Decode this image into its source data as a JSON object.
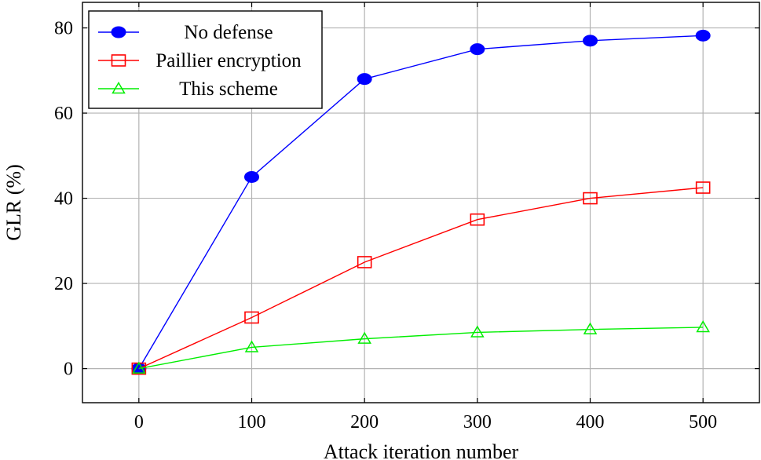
{
  "chart_data": {
    "type": "line",
    "title": "",
    "xlabel": "Attack iteration number",
    "ylabel": "GLR (%)",
    "x": [
      0,
      100,
      200,
      300,
      400,
      500
    ],
    "xlim": [
      -50,
      550
    ],
    "ylim": [
      -8,
      86
    ],
    "xticks": [
      0,
      100,
      200,
      300,
      400,
      500
    ],
    "yticks": [
      0,
      20,
      40,
      60,
      80
    ],
    "grid": true,
    "legend_position": "top-left",
    "series": [
      {
        "name": "No defense",
        "color": "#0000ff",
        "marker": "filled-circle",
        "values": [
          0,
          45,
          68,
          75,
          77,
          78.2
        ]
      },
      {
        "name": "Paillier encryption",
        "color": "#ff0000",
        "marker": "open-square",
        "values": [
          0,
          12,
          25,
          35,
          40,
          42.5
        ]
      },
      {
        "name": "This scheme",
        "color": "#00ee00",
        "marker": "open-triangle",
        "values": [
          0,
          5,
          7,
          8.5,
          9.2,
          9.7
        ]
      }
    ]
  }
}
